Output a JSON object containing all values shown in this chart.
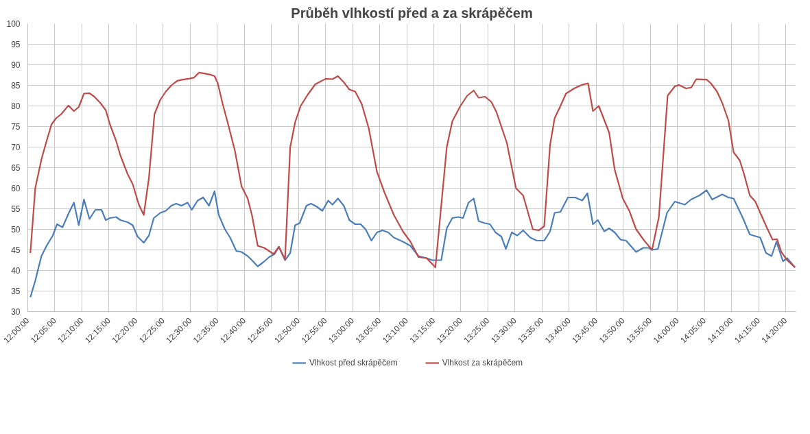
{
  "chart_data": {
    "type": "line",
    "title": "Průběh vlhkostí před a za skrápěčem",
    "xlim": [
      12.0,
      14.365
    ],
    "ylim": [
      30,
      100
    ],
    "yticks": [
      30,
      35,
      40,
      45,
      50,
      55,
      60,
      65,
      70,
      75,
      80,
      85,
      90,
      95,
      100
    ],
    "xticks": [
      {
        "value": 12.0,
        "label": "12:00:00"
      },
      {
        "value": 12.0833,
        "label": "12:05:00"
      },
      {
        "value": 12.1667,
        "label": "12:10:00"
      },
      {
        "value": 12.25,
        "label": "12:15:00"
      },
      {
        "value": 12.3333,
        "label": "12:20:00"
      },
      {
        "value": 12.4167,
        "label": "12:25:00"
      },
      {
        "value": 12.5,
        "label": "12:30:00"
      },
      {
        "value": 12.5833,
        "label": "12:35:00"
      },
      {
        "value": 12.6667,
        "label": "12:40:00"
      },
      {
        "value": 12.75,
        "label": "12:45:00"
      },
      {
        "value": 12.8333,
        "label": "12:50:00"
      },
      {
        "value": 12.9167,
        "label": "12:55:00"
      },
      {
        "value": 13.0,
        "label": "13:00:00"
      },
      {
        "value": 13.0833,
        "label": "13:05:00"
      },
      {
        "value": 13.1667,
        "label": "13:10:00"
      },
      {
        "value": 13.25,
        "label": "13:15:00"
      },
      {
        "value": 13.3333,
        "label": "13:20:00"
      },
      {
        "value": 13.4167,
        "label": "13:25:00"
      },
      {
        "value": 13.5,
        "label": "13:30:00"
      },
      {
        "value": 13.5833,
        "label": "13:35:00"
      },
      {
        "value": 13.6667,
        "label": "13:40:00"
      },
      {
        "value": 13.75,
        "label": "13:45:00"
      },
      {
        "value": 13.8333,
        "label": "13:50:00"
      },
      {
        "value": 13.9167,
        "label": "13:55:00"
      },
      {
        "value": 14.0,
        "label": "14:00:00"
      },
      {
        "value": 14.0833,
        "label": "14:05:00"
      },
      {
        "value": 14.1667,
        "label": "14:10:00"
      },
      {
        "value": 14.25,
        "label": "14:15:00"
      },
      {
        "value": 14.3333,
        "label": "14:20:00"
      }
    ],
    "grid": true,
    "legend": "bottom",
    "marker": "none",
    "line_style": "solid",
    "series": [
      {
        "name": "Vlhkost před skrápěčem",
        "color": "#4a7ebb",
        "x": [
          12.008,
          12.023,
          12.042,
          12.058,
          12.077,
          12.09,
          12.107,
          12.125,
          12.142,
          12.157,
          12.173,
          12.19,
          12.208,
          12.227,
          12.24,
          12.253,
          12.272,
          12.285,
          12.307,
          12.323,
          12.338,
          12.357,
          12.373,
          12.388,
          12.408,
          12.425,
          12.442,
          12.457,
          12.473,
          12.492,
          12.505,
          12.523,
          12.54,
          12.558,
          12.575,
          12.588,
          12.607,
          12.623,
          12.642,
          12.658,
          12.677,
          12.69,
          12.708,
          12.725,
          12.743,
          12.76,
          12.773,
          12.792,
          12.808,
          12.823,
          12.837,
          12.858,
          12.872,
          12.89,
          12.907,
          12.925,
          12.938,
          12.955,
          12.973,
          12.99,
          13.008,
          13.025,
          13.04,
          13.058,
          13.075,
          13.092,
          13.11,
          13.127,
          13.155,
          13.178,
          13.203,
          13.228,
          13.245,
          13.273,
          13.29,
          13.307,
          13.325,
          13.34,
          13.357,
          13.373,
          13.388,
          13.407,
          13.423,
          13.44,
          13.458,
          13.472,
          13.49,
          13.507,
          13.525,
          13.547,
          13.567,
          13.59,
          13.608,
          13.622,
          13.64,
          13.663,
          13.685,
          13.707,
          13.723,
          13.74,
          13.755,
          13.775,
          13.79,
          13.807,
          13.825,
          13.842,
          13.873,
          13.895,
          13.912,
          13.922,
          13.94,
          13.968,
          13.992,
          14.023,
          14.042,
          14.068,
          14.09,
          14.107,
          14.138,
          14.157,
          14.173,
          14.203,
          14.223,
          14.255,
          14.273,
          14.29,
          14.305,
          14.325,
          14.338,
          14.362
        ],
        "values": [
          33.5,
          37.5,
          43.5,
          46,
          48.5,
          51.25,
          50.5,
          53.75,
          56.5,
          51,
          57.25,
          52.5,
          54.75,
          54.75,
          52.25,
          52.75,
          53,
          52.25,
          51.75,
          51,
          48.25,
          46.75,
          48.5,
          52.75,
          54,
          54.5,
          55.75,
          56.25,
          55.75,
          56.5,
          54.75,
          57,
          57.75,
          55.75,
          59.25,
          53.5,
          50,
          48,
          44.75,
          44.5,
          43.5,
          42.5,
          41,
          42,
          43.25,
          44,
          45.75,
          42.5,
          44.25,
          51,
          51.5,
          55.75,
          56.25,
          55.5,
          54.5,
          57,
          56,
          57.5,
          55.75,
          52.25,
          51.25,
          51.25,
          50,
          47.25,
          49.25,
          49.75,
          49.25,
          48,
          47,
          46,
          43.5,
          43,
          42.5,
          42.5,
          50.25,
          52.75,
          53,
          52.75,
          56.5,
          57.5,
          52,
          51.5,
          51.25,
          49.25,
          48.25,
          45.25,
          49.25,
          48.5,
          49.75,
          48,
          47.25,
          47.25,
          49.5,
          54,
          54.25,
          57.75,
          57.75,
          57,
          58.75,
          51.25,
          52.25,
          49.5,
          50.25,
          49.25,
          47.5,
          47.25,
          44.5,
          45.5,
          45.5,
          45,
          45.25,
          54,
          56.75,
          56,
          57.25,
          58.25,
          59.5,
          57.25,
          58.5,
          57.75,
          57.5,
          52.5,
          48.75,
          48,
          44.25,
          43.5,
          47,
          42.25,
          43,
          40.75
        ]
      },
      {
        "name": "Vlhkost za skrápěčem",
        "color": "#be4b48",
        "x": [
          12.008,
          12.023,
          12.042,
          12.058,
          12.073,
          12.087,
          12.103,
          12.125,
          12.142,
          12.157,
          12.173,
          12.19,
          12.205,
          12.223,
          12.24,
          12.253,
          12.272,
          12.285,
          12.307,
          12.323,
          12.342,
          12.357,
          12.373,
          12.39,
          12.408,
          12.425,
          12.442,
          12.46,
          12.477,
          12.498,
          12.512,
          12.527,
          12.543,
          12.562,
          12.575,
          12.585,
          12.6,
          12.617,
          12.638,
          12.658,
          12.677,
          12.69,
          12.708,
          12.728,
          12.757,
          12.773,
          12.792,
          12.808,
          12.823,
          12.84,
          12.862,
          12.885,
          12.917,
          12.938,
          12.955,
          12.973,
          12.99,
          13.008,
          13.028,
          13.05,
          13.075,
          13.098,
          13.127,
          13.155,
          13.178,
          13.203,
          13.228,
          13.255,
          13.29,
          13.307,
          13.332,
          13.353,
          13.373,
          13.388,
          13.408,
          13.427,
          13.443,
          13.475,
          13.503,
          13.525,
          13.555,
          13.573,
          13.59,
          13.608,
          13.622,
          13.64,
          13.657,
          13.682,
          13.705,
          13.725,
          13.74,
          13.758,
          13.79,
          13.807,
          13.832,
          13.852,
          13.873,
          13.898,
          13.922,
          13.943,
          13.97,
          13.992,
          14.005,
          14.027,
          14.043,
          14.058,
          14.09,
          14.103,
          14.122,
          14.138,
          14.157,
          14.173,
          14.192,
          14.205,
          14.223,
          14.24,
          14.258,
          14.275,
          14.293,
          14.307,
          14.32,
          14.338,
          14.362
        ],
        "values": [
          44.25,
          60,
          67,
          71.5,
          75.5,
          77,
          78,
          80.1,
          78.75,
          79.75,
          83,
          83.1,
          82.25,
          80.75,
          79,
          75.5,
          71.5,
          68,
          63.5,
          61,
          56,
          53.5,
          62.5,
          78,
          81.5,
          83.5,
          85,
          86.1,
          86.4,
          86.65,
          86.9,
          88.1,
          87.9,
          87.6,
          87.25,
          85.5,
          80.5,
          75.5,
          69,
          60.5,
          57.5,
          53.5,
          46,
          45.5,
          44,
          45.75,
          42.75,
          70,
          76,
          80,
          82.75,
          85.25,
          86.6,
          86.5,
          87.25,
          85.75,
          84,
          83.5,
          80.5,
          74.5,
          64,
          59,
          53.5,
          49.5,
          47,
          43.25,
          43,
          40.75,
          70,
          76.25,
          80,
          82.5,
          83.75,
          82,
          82.25,
          81,
          78.5,
          71,
          60,
          58.25,
          50,
          49.75,
          50.75,
          70.5,
          77,
          80,
          83,
          84.25,
          85.1,
          85.5,
          78.75,
          80,
          73.5,
          64.5,
          57.5,
          54.5,
          50,
          47.25,
          45,
          53,
          82.5,
          84.75,
          85.1,
          84.25,
          84.5,
          86.5,
          86.4,
          85.5,
          83.5,
          80.75,
          76.5,
          68.75,
          66.75,
          63.5,
          58.25,
          56.75,
          53.5,
          50.5,
          47.5,
          47.6,
          44.5,
          42.5,
          40.75
        ]
      }
    ]
  }
}
